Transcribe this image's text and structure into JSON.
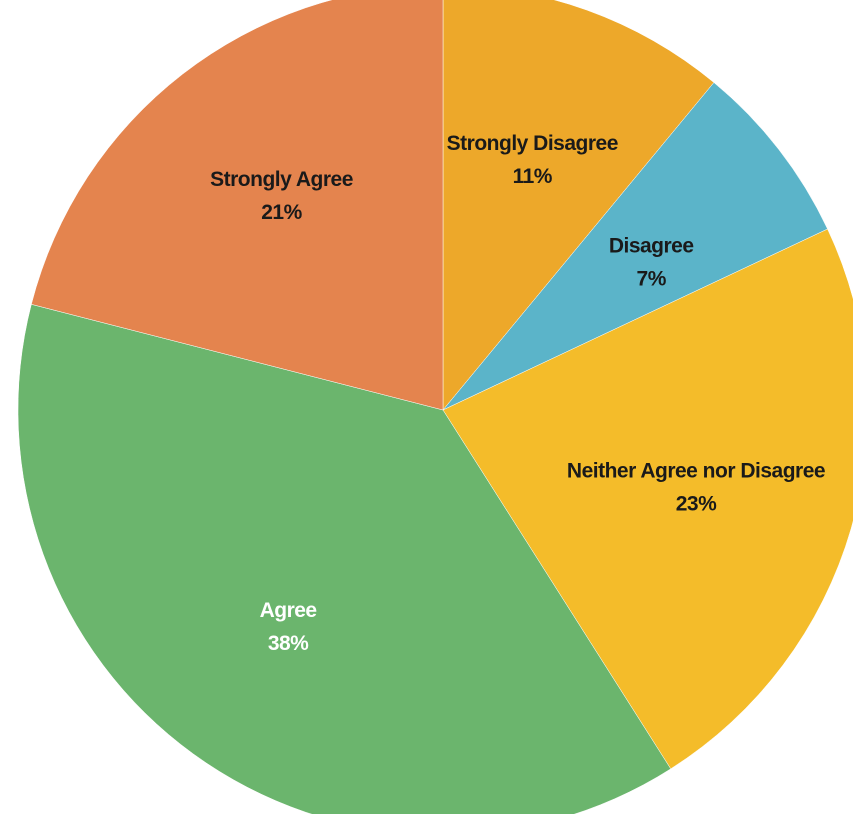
{
  "chart_data": {
    "type": "pie",
    "title": "",
    "start_angle_deg": 0,
    "direction": "clockwise",
    "slices": [
      {
        "label": "Strongly Disagree",
        "value": 11,
        "display": "11%",
        "color": "#EDA82A",
        "text_color": "#1a1a1a"
      },
      {
        "label": "Disagree",
        "value": 7,
        "display": "7%",
        "color": "#5BB4C9",
        "text_color": "#1a1a1a"
      },
      {
        "label": "Neither Agree nor Disagree",
        "value": 23,
        "display": "23%",
        "color": "#F4BC2A",
        "text_color": "#1a1a1a"
      },
      {
        "label": "Agree",
        "value": 38,
        "display": "38%",
        "color": "#6BB56D",
        "text_color": "#ffffff"
      },
      {
        "label": "Strongly Agree",
        "value": 21,
        "display": "21%",
        "color": "#E4844E",
        "text_color": "#1a1a1a"
      }
    ]
  }
}
